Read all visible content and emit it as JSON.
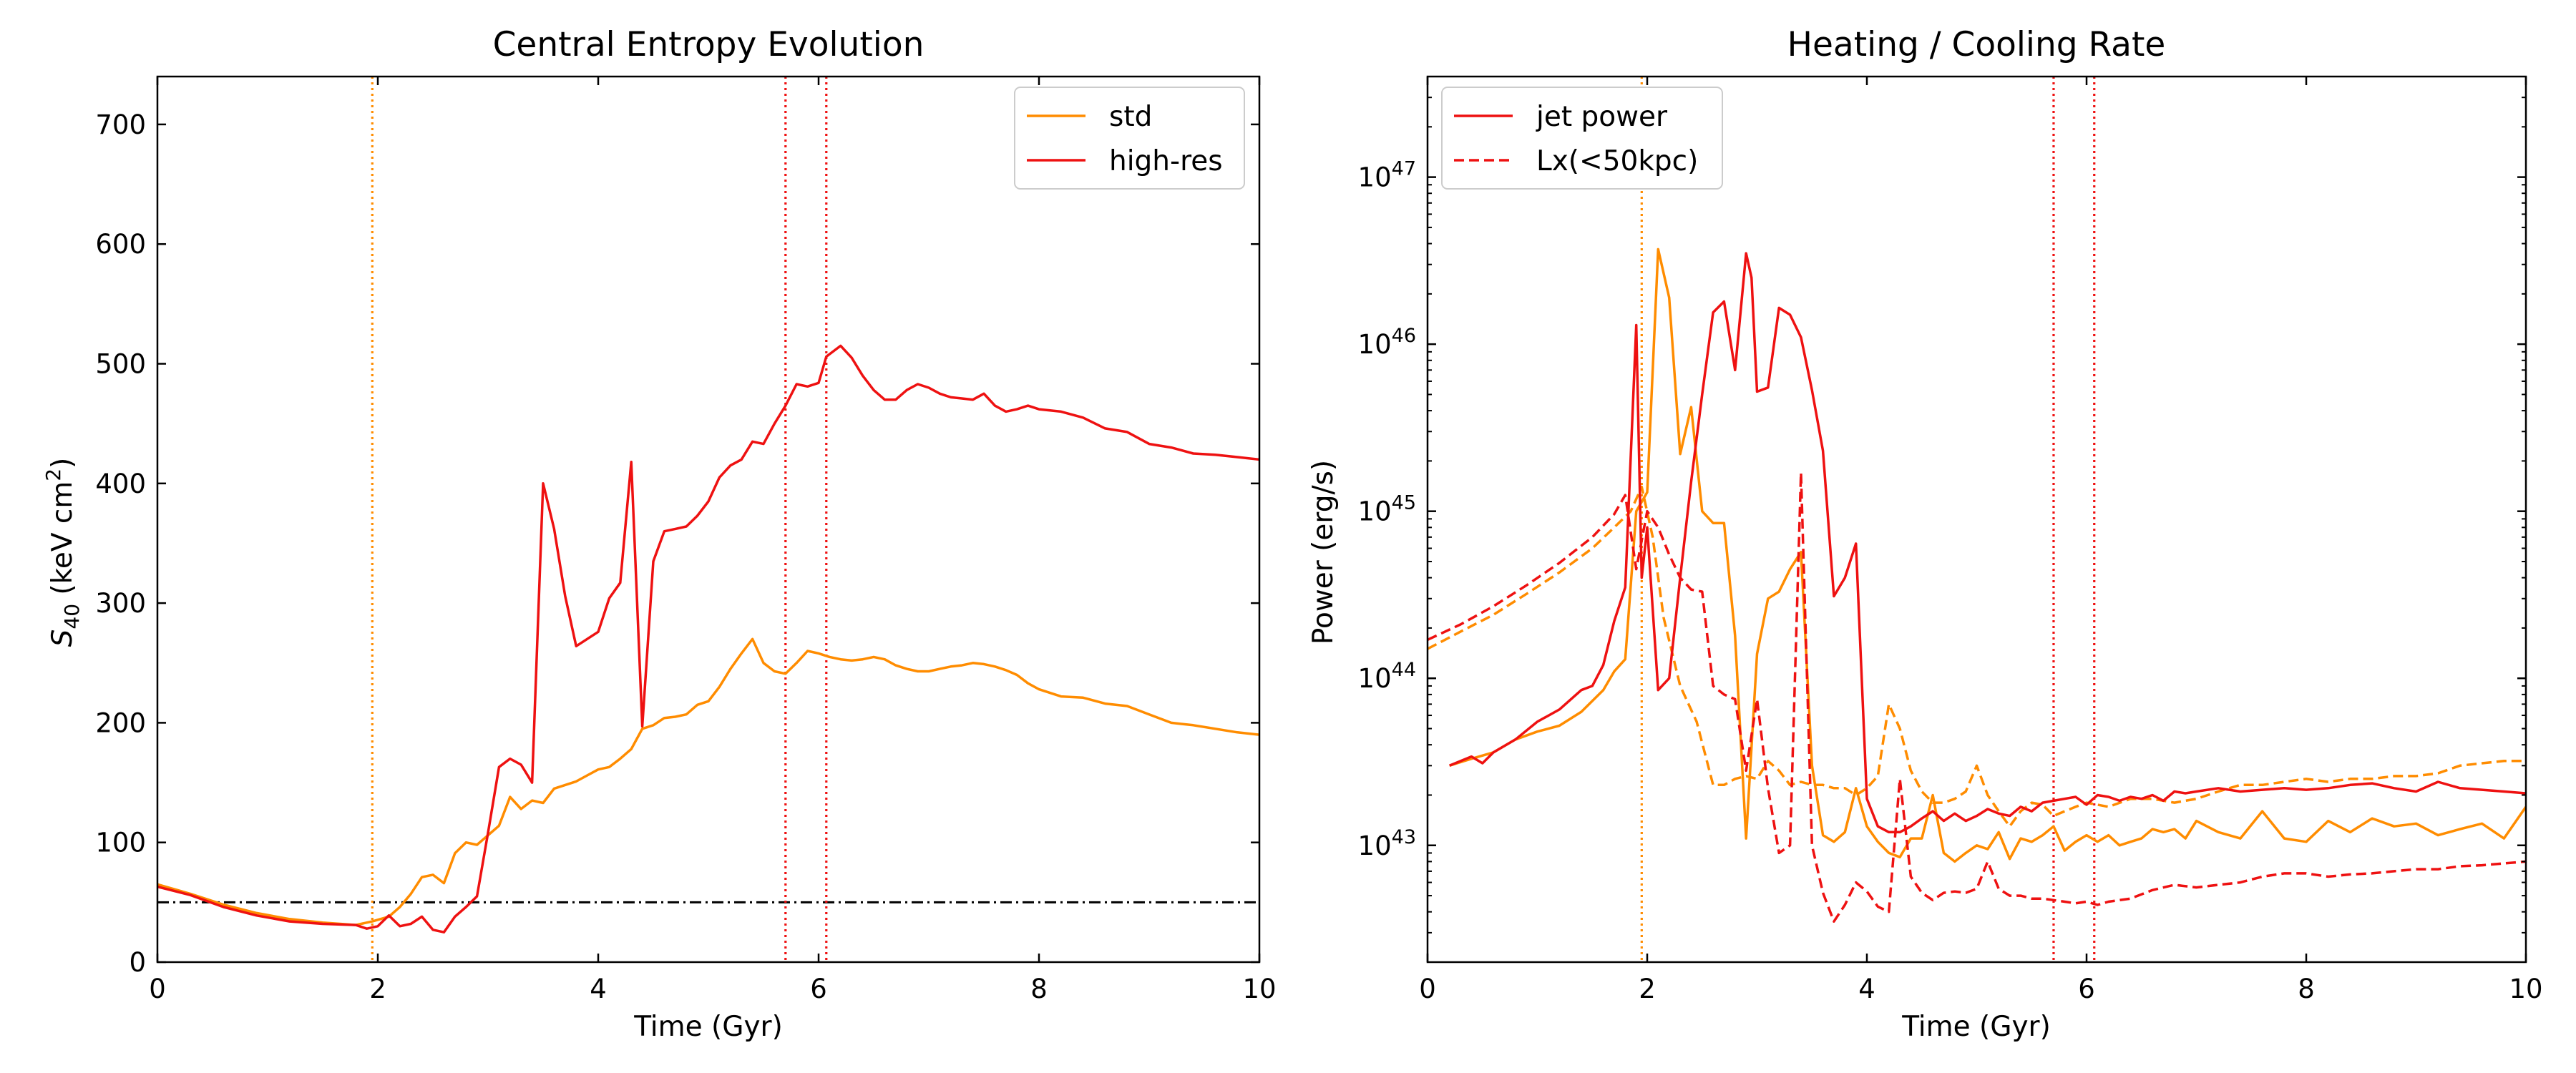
{
  "colors": {
    "std": "#ff8c00",
    "highres": "#ee1111",
    "threshold": "#000000"
  },
  "chart_data": [
    {
      "type": "line",
      "title": "Central Entropy Evolution",
      "xlabel": "Time (Gyr)",
      "ylabel_main": "S",
      "ylabel_sub": "40",
      "ylabel_unit_pre": " (keV cm",
      "ylabel_unit_sup": "2",
      "ylabel_unit_post": ")",
      "xlim": [
        0,
        10
      ],
      "ylim": [
        0,
        740
      ],
      "xticks": [
        0,
        2,
        4,
        6,
        8,
        10
      ],
      "yticks": [
        0,
        100,
        200,
        300,
        400,
        500,
        600,
        700
      ],
      "legend_position": "upper-right",
      "threshold_line": 50,
      "vlines": [
        {
          "x": 1.95,
          "color_key": "std"
        },
        {
          "x": 5.7,
          "color_key": "highres"
        },
        {
          "x": 6.07,
          "color_key": "highres"
        }
      ],
      "series": [
        {
          "name": "std",
          "color_key": "std",
          "x": [
            0,
            0.3,
            0.6,
            0.9,
            1.2,
            1.5,
            1.8,
            1.95,
            2.1,
            2.2,
            2.3,
            2.4,
            2.5,
            2.6,
            2.7,
            2.8,
            2.9,
            3.0,
            3.1,
            3.2,
            3.3,
            3.4,
            3.5,
            3.6,
            3.7,
            3.8,
            3.9,
            4.0,
            4.1,
            4.2,
            4.3,
            4.4,
            4.5,
            4.6,
            4.7,
            4.8,
            4.9,
            5.0,
            5.1,
            5.2,
            5.3,
            5.4,
            5.5,
            5.6,
            5.7,
            5.8,
            5.9,
            6.0,
            6.1,
            6.2,
            6.3,
            6.4,
            6.5,
            6.6,
            6.7,
            6.8,
            6.9,
            7.0,
            7.1,
            7.2,
            7.3,
            7.4,
            7.5,
            7.6,
            7.7,
            7.8,
            7.9,
            8.0,
            8.2,
            8.4,
            8.6,
            8.8,
            9.0,
            9.2,
            9.4,
            9.6,
            9.8,
            10.0
          ],
          "y": [
            65,
            57,
            48,
            41,
            36,
            33,
            31,
            34,
            38,
            46,
            57,
            71,
            73,
            66,
            91,
            100,
            98,
            106,
            114,
            138,
            128,
            135,
            133,
            145,
            148,
            151,
            156,
            161,
            163,
            170,
            178,
            195,
            198,
            204,
            205,
            207,
            215,
            218,
            230,
            245,
            258,
            270,
            250,
            243,
            241,
            250,
            260,
            258,
            255,
            253,
            252,
            253,
            255,
            253,
            248,
            245,
            243,
            243,
            245,
            247,
            248,
            250,
            249,
            247,
            244,
            240,
            233,
            228,
            222,
            221,
            216,
            214,
            207,
            200,
            198,
            195,
            192,
            190
          ]
        },
        {
          "name": "high-res",
          "color_key": "highres",
          "x": [
            0,
            0.3,
            0.6,
            0.9,
            1.2,
            1.5,
            1.8,
            1.9,
            2.0,
            2.1,
            2.2,
            2.3,
            2.4,
            2.5,
            2.6,
            2.7,
            2.8,
            2.9,
            3.0,
            3.1,
            3.2,
            3.3,
            3.4,
            3.5,
            3.6,
            3.7,
            3.8,
            3.9,
            4.0,
            4.1,
            4.2,
            4.3,
            4.4,
            4.5,
            4.6,
            4.7,
            4.8,
            4.9,
            5.0,
            5.1,
            5.2,
            5.3,
            5.4,
            5.5,
            5.6,
            5.7,
            5.8,
            5.9,
            6.0,
            6.07,
            6.2,
            6.3,
            6.4,
            6.5,
            6.6,
            6.7,
            6.8,
            6.9,
            7.0,
            7.1,
            7.2,
            7.3,
            7.4,
            7.5,
            7.6,
            7.7,
            7.8,
            7.9,
            8.0,
            8.2,
            8.4,
            8.6,
            8.8,
            9.0,
            9.2,
            9.4,
            9.6,
            9.8,
            10.0
          ],
          "y": [
            63,
            56,
            46,
            39,
            34,
            32,
            31,
            28,
            30,
            39,
            30,
            32,
            38,
            27,
            25,
            38,
            46,
            55,
            108,
            163,
            170,
            165,
            150,
            400,
            362,
            306,
            264,
            270,
            276,
            304,
            317,
            418,
            197,
            335,
            360,
            362,
            364,
            373,
            385,
            405,
            415,
            420,
            435,
            433,
            450,
            465,
            483,
            481,
            484,
            506,
            515,
            505,
            490,
            478,
            470,
            470,
            478,
            483,
            480,
            475,
            472,
            471,
            470,
            475,
            465,
            460,
            462,
            465,
            462,
            460,
            455,
            446,
            443,
            433,
            430,
            425,
            424,
            422,
            420
          ]
        }
      ]
    },
    {
      "type": "line",
      "title": "Heating / Cooling Rate",
      "xlabel": "Time (Gyr)",
      "ylabel": "Power (erg/s)",
      "yscale": "log",
      "xlim": [
        0,
        10
      ],
      "ylim": [
        2e+42,
        4e+47
      ],
      "xticks": [
        0,
        2,
        4,
        6,
        8,
        10
      ],
      "ytick_labels": [
        {
          "base": "10",
          "exp": "43",
          "value": 1e+43
        },
        {
          "base": "10",
          "exp": "44",
          "value": 1e+44
        },
        {
          "base": "10",
          "exp": "45",
          "value": 1e+45
        },
        {
          "base": "10",
          "exp": "46",
          "value": 1e+46
        },
        {
          "base": "10",
          "exp": "47",
          "value": 1e+47
        }
      ],
      "legend_position": "upper-left",
      "vlines": [
        {
          "x": 1.95,
          "color_key": "std"
        },
        {
          "x": 5.7,
          "color_key": "highres"
        },
        {
          "x": 6.07,
          "color_key": "highres"
        }
      ],
      "legend": [
        {
          "label": "jet power",
          "style": "solid",
          "color_key": "highres"
        },
        {
          "label": "Lx(<50kpc)",
          "style": "dashed",
          "color_key": "highres"
        }
      ],
      "series": [
        {
          "name": "jet power",
          "style": "solid",
          "color_key": "std",
          "x": [
            0.2,
            0.4,
            0.6,
            0.8,
            1.0,
            1.2,
            1.4,
            1.6,
            1.7,
            1.8,
            1.9,
            2.0,
            2.1,
            2.2,
            2.3,
            2.4,
            2.5,
            2.6,
            2.7,
            2.8,
            2.9,
            3.0,
            3.1,
            3.2,
            3.3,
            3.4,
            3.5,
            3.6,
            3.7,
            3.8,
            3.9,
            4.0,
            4.1,
            4.2,
            4.3,
            4.4,
            4.5,
            4.6,
            4.7,
            4.8,
            4.9,
            5.0,
            5.1,
            5.2,
            5.3,
            5.4,
            5.5,
            5.6,
            5.7,
            5.8,
            5.9,
            6.0,
            6.1,
            6.2,
            6.3,
            6.4,
            6.5,
            6.6,
            6.7,
            6.8,
            6.9,
            7.0,
            7.2,
            7.4,
            7.6,
            7.8,
            8.0,
            8.2,
            8.4,
            8.6,
            8.8,
            9.0,
            9.2,
            9.4,
            9.6,
            9.8,
            10.0
          ],
          "y": [
            3e+43,
            3.3e+43,
            3.6e+43,
            4.3e+43,
            4.8e+43,
            5.2e+43,
            6.3e+43,
            8.5e+43,
            1.1e+44,
            1.3e+44,
            1e+45,
            1.3e+45,
            3.7e+46,
            1.9e+46,
            2.2e+45,
            4.2e+45,
            1e+45,
            8.5e+44,
            8.5e+44,
            1.8e+44,
            1.1e+43,
            1.4e+44,
            3e+44,
            3.3e+44,
            4.5e+44,
            5.7e+44,
            3e+43,
            1.15e+43,
            1.05e+43,
            1.2e+43,
            2.2e+43,
            1.3e+43,
            1.05e+43,
            9e+42,
            8.5e+42,
            1.1e+43,
            1.1e+43,
            2e+43,
            9e+42,
            8e+42,
            9e+42,
            1e+43,
            9.5e+42,
            1.2e+43,
            8.3e+42,
            1.1e+43,
            1.05e+43,
            1.15e+43,
            1.3e+43,
            9.3e+42,
            1.05e+43,
            1.15e+43,
            1.05e+43,
            1.15e+43,
            1e+43,
            1.05e+43,
            1.1e+43,
            1.25e+43,
            1.2e+43,
            1.25e+43,
            1.1e+43,
            1.4e+43,
            1.2e+43,
            1.1e+43,
            1.6e+43,
            1.1e+43,
            1.05e+43,
            1.4e+43,
            1.2e+43,
            1.45e+43,
            1.3e+43,
            1.35e+43,
            1.15e+43,
            1.25e+43,
            1.35e+43,
            1.1e+43,
            1.7e+43
          ]
        },
        {
          "name": "Lx(<50kpc)",
          "style": "dashed",
          "color_key": "std",
          "x": [
            0,
            0.3,
            0.6,
            0.9,
            1.2,
            1.5,
            1.7,
            1.85,
            1.95,
            2.05,
            2.15,
            2.3,
            2.45,
            2.6,
            2.7,
            2.8,
            2.9,
            3.0,
            3.1,
            3.2,
            3.3,
            3.4,
            3.5,
            3.6,
            3.7,
            3.8,
            3.9,
            4.0,
            4.1,
            4.2,
            4.3,
            4.4,
            4.5,
            4.6,
            4.7,
            4.8,
            4.9,
            5.0,
            5.1,
            5.2,
            5.3,
            5.4,
            5.5,
            5.6,
            5.7,
            5.8,
            5.9,
            6.0,
            6.2,
            6.4,
            6.6,
            6.8,
            7.0,
            7.2,
            7.4,
            7.6,
            7.8,
            8.0,
            8.2,
            8.4,
            8.6,
            8.8,
            9.0,
            9.2,
            9.4,
            9.6,
            9.8,
            10.0
          ],
          "y": [
            1.5e+44,
            1.9e+44,
            2.4e+44,
            3.2e+44,
            4.3e+44,
            6e+44,
            8e+44,
            1e+45,
            1.4e+45,
            7e+44,
            2.3e+44,
            9e+43,
            5.5e+43,
            2.3e+43,
            2.3e+43,
            2.5e+43,
            2.6e+43,
            2.5e+43,
            3.2e+43,
            2.8e+43,
            2.3e+43,
            2.4e+43,
            2.3e+43,
            2.3e+43,
            2.2e+43,
            2.2e+43,
            2e+43,
            2.2e+43,
            2.6e+43,
            7e+43,
            5e+43,
            2.8e+43,
            2.1e+43,
            1.8e+43,
            1.8e+43,
            1.9e+43,
            2.1e+43,
            3e+43,
            2e+43,
            1.6e+43,
            1.3e+43,
            1.6e+43,
            1.8e+43,
            1.75e+43,
            1.5e+43,
            1.6e+43,
            1.7e+43,
            1.8e+43,
            1.7e+43,
            1.9e+43,
            1.9e+43,
            1.8e+43,
            1.9e+43,
            2.1e+43,
            2.3e+43,
            2.3e+43,
            2.4e+43,
            2.5e+43,
            2.4e+43,
            2.5e+43,
            2.5e+43,
            2.6e+43,
            2.6e+43,
            2.7e+43,
            3e+43,
            3.1e+43,
            3.2e+43,
            3.2e+43
          ]
        },
        {
          "name": "jet power",
          "style": "solid",
          "color_key": "highres",
          "x": [
            0.2,
            0.4,
            0.5,
            0.6,
            0.8,
            1.0,
            1.2,
            1.4,
            1.5,
            1.6,
            1.7,
            1.8,
            1.9,
            1.95,
            2.0,
            2.1,
            2.2,
            2.3,
            2.4,
            2.5,
            2.6,
            2.7,
            2.8,
            2.9,
            2.95,
            3.0,
            3.1,
            3.2,
            3.3,
            3.4,
            3.5,
            3.6,
            3.7,
            3.8,
            3.9,
            4.0,
            4.1,
            4.2,
            4.3,
            4.4,
            4.5,
            4.6,
            4.7,
            4.8,
            4.9,
            5.0,
            5.1,
            5.2,
            5.3,
            5.4,
            5.5,
            5.6,
            5.7,
            5.8,
            5.9,
            6.0,
            6.1,
            6.2,
            6.3,
            6.4,
            6.5,
            6.6,
            6.7,
            6.8,
            6.9,
            7.0,
            7.2,
            7.4,
            7.6,
            7.8,
            8.0,
            8.2,
            8.4,
            8.6,
            8.8,
            9.0,
            9.2,
            9.4,
            9.6,
            9.8,
            10.0
          ],
          "y": [
            3e+43,
            3.4e+43,
            3.1e+43,
            3.6e+43,
            4.3e+43,
            5.5e+43,
            6.5e+43,
            8.5e+43,
            9e+43,
            1.2e+44,
            2.2e+44,
            3.5e+44,
            1.3e+46,
            4e+44,
            8e+44,
            8.5e+43,
            1e+44,
            4e+44,
            1.5e+45,
            5e+45,
            1.55e+46,
            1.8e+46,
            7e+45,
            3.5e+46,
            2.5e+46,
            5.2e+45,
            5.5e+45,
            1.65e+46,
            1.5e+46,
            1.1e+46,
            5.3e+45,
            2.3e+45,
            3.1e+44,
            4e+44,
            6.4e+44,
            1.9e+43,
            1.3e+43,
            1.2e+43,
            1.2e+43,
            1.3e+43,
            1.45e+43,
            1.6e+43,
            1.4e+43,
            1.55e+43,
            1.4e+43,
            1.5e+43,
            1.65e+43,
            1.55e+43,
            1.5e+43,
            1.7e+43,
            1.6e+43,
            1.8e+43,
            1.85e+43,
            1.9e+43,
            1.95e+43,
            1.75e+43,
            2e+43,
            1.95e+43,
            1.85e+43,
            1.95e+43,
            1.9e+43,
            2e+43,
            1.85e+43,
            2.1e+43,
            2.05e+43,
            2.1e+43,
            2.2e+43,
            2.1e+43,
            2.15e+43,
            2.2e+43,
            2.15e+43,
            2.2e+43,
            2.3e+43,
            2.35e+43,
            2.2e+43,
            2.1e+43,
            2.4e+43,
            2.2e+43,
            2.15e+43,
            2.1e+43,
            2.05e+43
          ]
        },
        {
          "name": "Lx(<50kpc)",
          "style": "dashed",
          "color_key": "highres",
          "x": [
            0,
            0.3,
            0.6,
            0.9,
            1.2,
            1.5,
            1.7,
            1.8,
            1.9,
            2.0,
            2.1,
            2.2,
            2.3,
            2.4,
            2.5,
            2.6,
            2.7,
            2.8,
            2.9,
            3.0,
            3.1,
            3.2,
            3.3,
            3.4,
            3.5,
            3.6,
            3.7,
            3.8,
            3.9,
            4.0,
            4.1,
            4.2,
            4.3,
            4.4,
            4.5,
            4.6,
            4.7,
            4.8,
            4.9,
            5.0,
            5.1,
            5.2,
            5.3,
            5.4,
            5.5,
            5.6,
            5.7,
            5.8,
            5.9,
            6.0,
            6.1,
            6.2,
            6.4,
            6.6,
            6.8,
            7.0,
            7.2,
            7.4,
            7.6,
            7.8,
            8.0,
            8.2,
            8.4,
            8.6,
            8.8,
            9.0,
            9.2,
            9.4,
            9.6,
            9.8,
            10.0
          ],
          "y": [
            1.7e+44,
            2.1e+44,
            2.7e+44,
            3.6e+44,
            4.9e+44,
            7e+44,
            9.6e+44,
            1.25e+45,
            4.5e+44,
            1e+45,
            8e+44,
            5.5e+44,
            4e+44,
            3.4e+44,
            3.3e+44,
            9e+43,
            8e+43,
            7.5e+43,
            2.8e+43,
            7.5e+43,
            2.2e+43,
            9e+42,
            1e+43,
            1.7e+45,
            1e+43,
            5.2e+42,
            3.5e+42,
            4.4e+42,
            6e+42,
            5.3e+42,
            4.3e+42,
            4e+42,
            2.5e+43,
            6.5e+42,
            5.2e+42,
            4.7e+42,
            5.2e+42,
            5.3e+42,
            5.2e+42,
            5.5e+42,
            8e+42,
            5.5e+42,
            5e+42,
            5e+42,
            4.8e+42,
            4.8e+42,
            4.7e+42,
            4.6e+42,
            4.5e+42,
            4.6e+42,
            4.4e+42,
            4.6e+42,
            4.8e+42,
            5.4e+42,
            5.8e+42,
            5.6e+42,
            5.8e+42,
            6e+42,
            6.5e+42,
            6.8e+42,
            6.8e+42,
            6.5e+42,
            6.7e+42,
            6.8e+42,
            7e+42,
            7.2e+42,
            7.2e+42,
            7.5e+42,
            7.6e+42,
            7.8e+42,
            8e+42
          ]
        }
      ]
    }
  ]
}
